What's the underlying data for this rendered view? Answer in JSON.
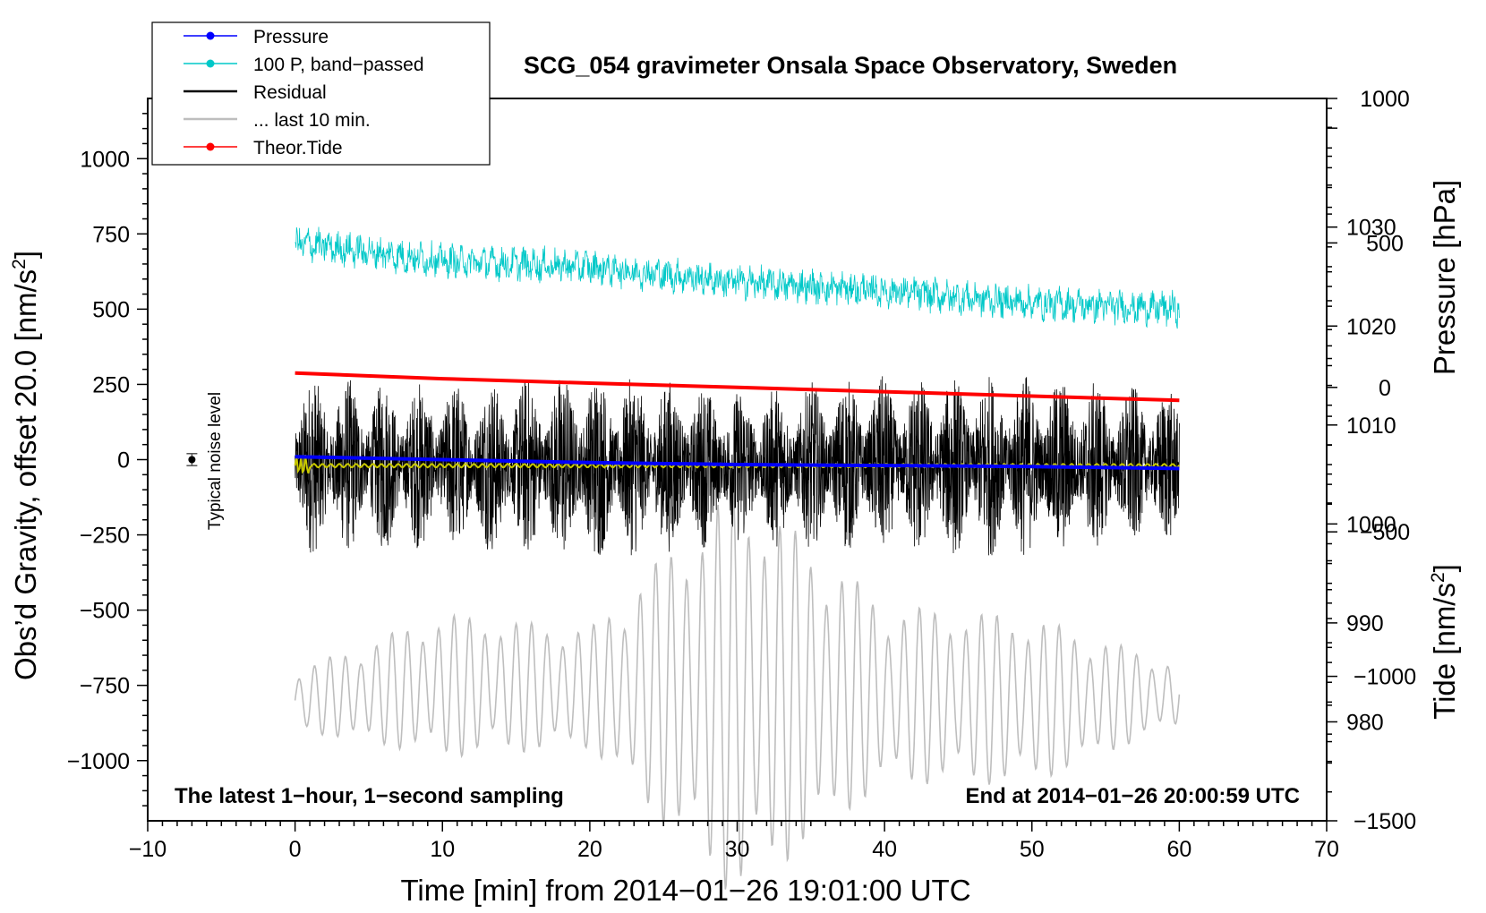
{
  "chart_data": {
    "type": "line",
    "title": "SCG_054 gravimeter Onsala Space Observatory, Sweden",
    "xlabel": "Time [min] from 2014−01−26 19:01:00 UTC",
    "ylabel_left": "Obs’d Gravity, offset 20.0 [nm/s",
    "ylabel_left_sup": "2",
    "ylabel_left_end": "]",
    "ylabel_right_pressure": "Pressure [hPa]",
    "ylabel_right_tide": "Tide [nm/s",
    "ylabel_right_tide_sup": "2",
    "ylabel_right_tide_end": "]",
    "xlim": [
      -10,
      70
    ],
    "ylim_left": [
      -1200,
      1200
    ],
    "pressure_lim": [
      970,
      1043
    ],
    "tide_lim": [
      -1500,
      1000
    ],
    "x_ticks": [
      -10,
      0,
      10,
      20,
      30,
      40,
      50,
      60,
      70
    ],
    "x_tick_labels": [
      "−10",
      "0",
      "10",
      "20",
      "30",
      "40",
      "50",
      "60",
      "70"
    ],
    "left_ticks": [
      1000,
      750,
      500,
      250,
      0,
      -250,
      -500,
      -750,
      -1000
    ],
    "left_tick_labels": [
      "1000",
      "750",
      "500",
      "250",
      "0",
      "−250",
      "−500",
      "−750",
      "−1000"
    ],
    "pressure_ticks": [
      1030,
      1020,
      1010,
      1000,
      990,
      980
    ],
    "pressure_tick_labels": [
      "1030",
      "1020",
      "1010",
      "1000",
      "990",
      "980"
    ],
    "tide_ticks": [
      1000,
      500,
      0,
      -500,
      -1000,
      -1500
    ],
    "tide_tick_labels": [
      "1000",
      "500",
      "0",
      "−500",
      "−1000",
      "−1500"
    ],
    "annotation_left": "The latest 1−hour, 1−second sampling",
    "annotation_right": "End at 2014−01−26 20:00:59 UTC",
    "noise_label": "Typical noise level",
    "noise_level": {
      "x": -7,
      "y": 0,
      "err": 20
    },
    "legend": [
      {
        "label": "Pressure",
        "color": "#0000ff",
        "marker": true
      },
      {
        "label": "100 P, band−passed",
        "color": "#00c8c8",
        "marker": true
      },
      {
        "label": "Residual",
        "color": "#000000",
        "marker": false
      },
      {
        "label": "... last 10 min.",
        "color": "#bebebe",
        "marker": false
      },
      {
        "label": "Theor.Tide",
        "color": "#ff0000",
        "marker": true
      }
    ],
    "series": [
      {
        "name": "Pressure",
        "axis": "pressure",
        "color": "#0000ff",
        "x": [
          0,
          10,
          20,
          30,
          40,
          50,
          60
        ],
        "values": [
          1006.8,
          1006.5,
          1006.2,
          1006.0,
          1005.9,
          1005.8,
          1005.6
        ]
      },
      {
        "name": "100 P, band−passed",
        "axis": "left",
        "color": "#00c8c8",
        "x": [
          0,
          10,
          20,
          30,
          40,
          50,
          60
        ],
        "values": [
          720,
          660,
          640,
          590,
          560,
          520,
          500
        ]
      },
      {
        "name": "Residual",
        "axis": "left",
        "color": "#000000",
        "x": [
          0,
          10,
          20,
          30,
          40,
          50,
          60
        ],
        "amplitude": [
          300,
          280,
          320,
          260,
          300,
          310,
          250
        ]
      },
      {
        "name": "... last 10 min.",
        "axis": "left",
        "color": "#bebebe",
        "x": [
          0,
          10,
          20,
          30,
          40,
          50,
          60
        ],
        "values": [
          -800,
          -750,
          -760,
          -770,
          -780,
          -800,
          -780
        ],
        "amplitude": [
          100,
          240,
          200,
          700,
          300,
          280,
          100
        ]
      },
      {
        "name": "Theor.Tide",
        "axis": "tide",
        "color": "#ff0000",
        "x": [
          0,
          10,
          20,
          30,
          40,
          50,
          60
        ],
        "values": [
          50,
          30,
          15,
          0,
          -15,
          -30,
          -45
        ]
      },
      {
        "name": "smoothed residual",
        "axis": "left",
        "color": "#c8c800",
        "x": [
          0,
          10,
          20,
          30,
          40,
          50,
          60
        ],
        "values": [
          -20,
          -20,
          -20,
          -20,
          -20,
          -20,
          -20
        ]
      }
    ]
  }
}
